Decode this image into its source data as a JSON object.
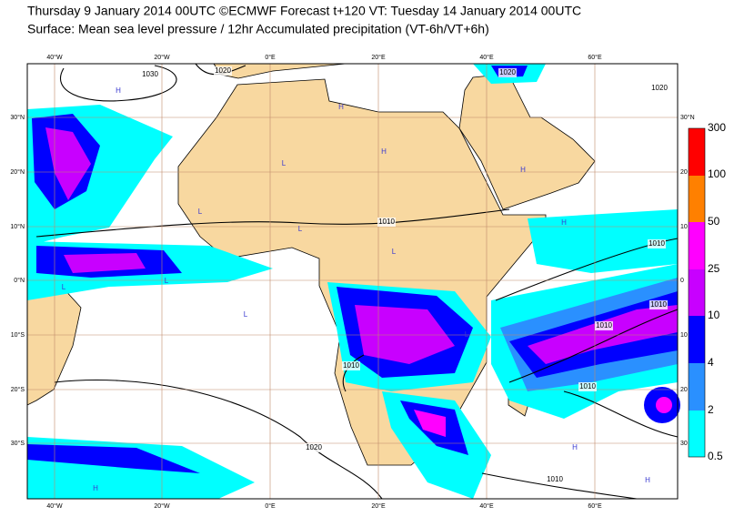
{
  "header": {
    "title": "Thursday 9 January 2014 00UTC ©ECMWF Forecast t+120 VT: Tuesday 14 January 2014 00UTC",
    "subtitle": "Surface: Mean sea level pressure / 12hr Accumulated precipitation (VT-6h/VT+6h)"
  },
  "map": {
    "longitude_labels_top": [
      "40°W",
      "20°W",
      "0°E",
      "20°E",
      "40°E",
      "60°E"
    ],
    "longitude_labels_bottom": [
      "40°W",
      "20°W",
      "0°E",
      "20°E",
      "40°E",
      "60°E"
    ],
    "latitude_labels_left": [
      "30°N",
      "20°N",
      "10°N",
      "0°N",
      "10°S",
      "20°S",
      "30°S"
    ],
    "latitude_labels_right": [
      "30°N",
      "20",
      "10",
      "0",
      "10",
      "20",
      "30"
    ],
    "isobar_labels": [
      "1030",
      "1020",
      "1020",
      "1020",
      "1010",
      "1010",
      "1010",
      "1010",
      "1010",
      "1010",
      "1020",
      "1010"
    ],
    "pressure_centers": [
      "H",
      "H",
      "H",
      "H",
      "H",
      "H",
      "H",
      "H",
      "L",
      "L",
      "L",
      "L",
      "L",
      "L",
      "L",
      "L"
    ]
  },
  "legend": {
    "labels": [
      "300",
      "100",
      "50",
      "25",
      "10",
      "4",
      "2",
      "0.5"
    ]
  }
}
